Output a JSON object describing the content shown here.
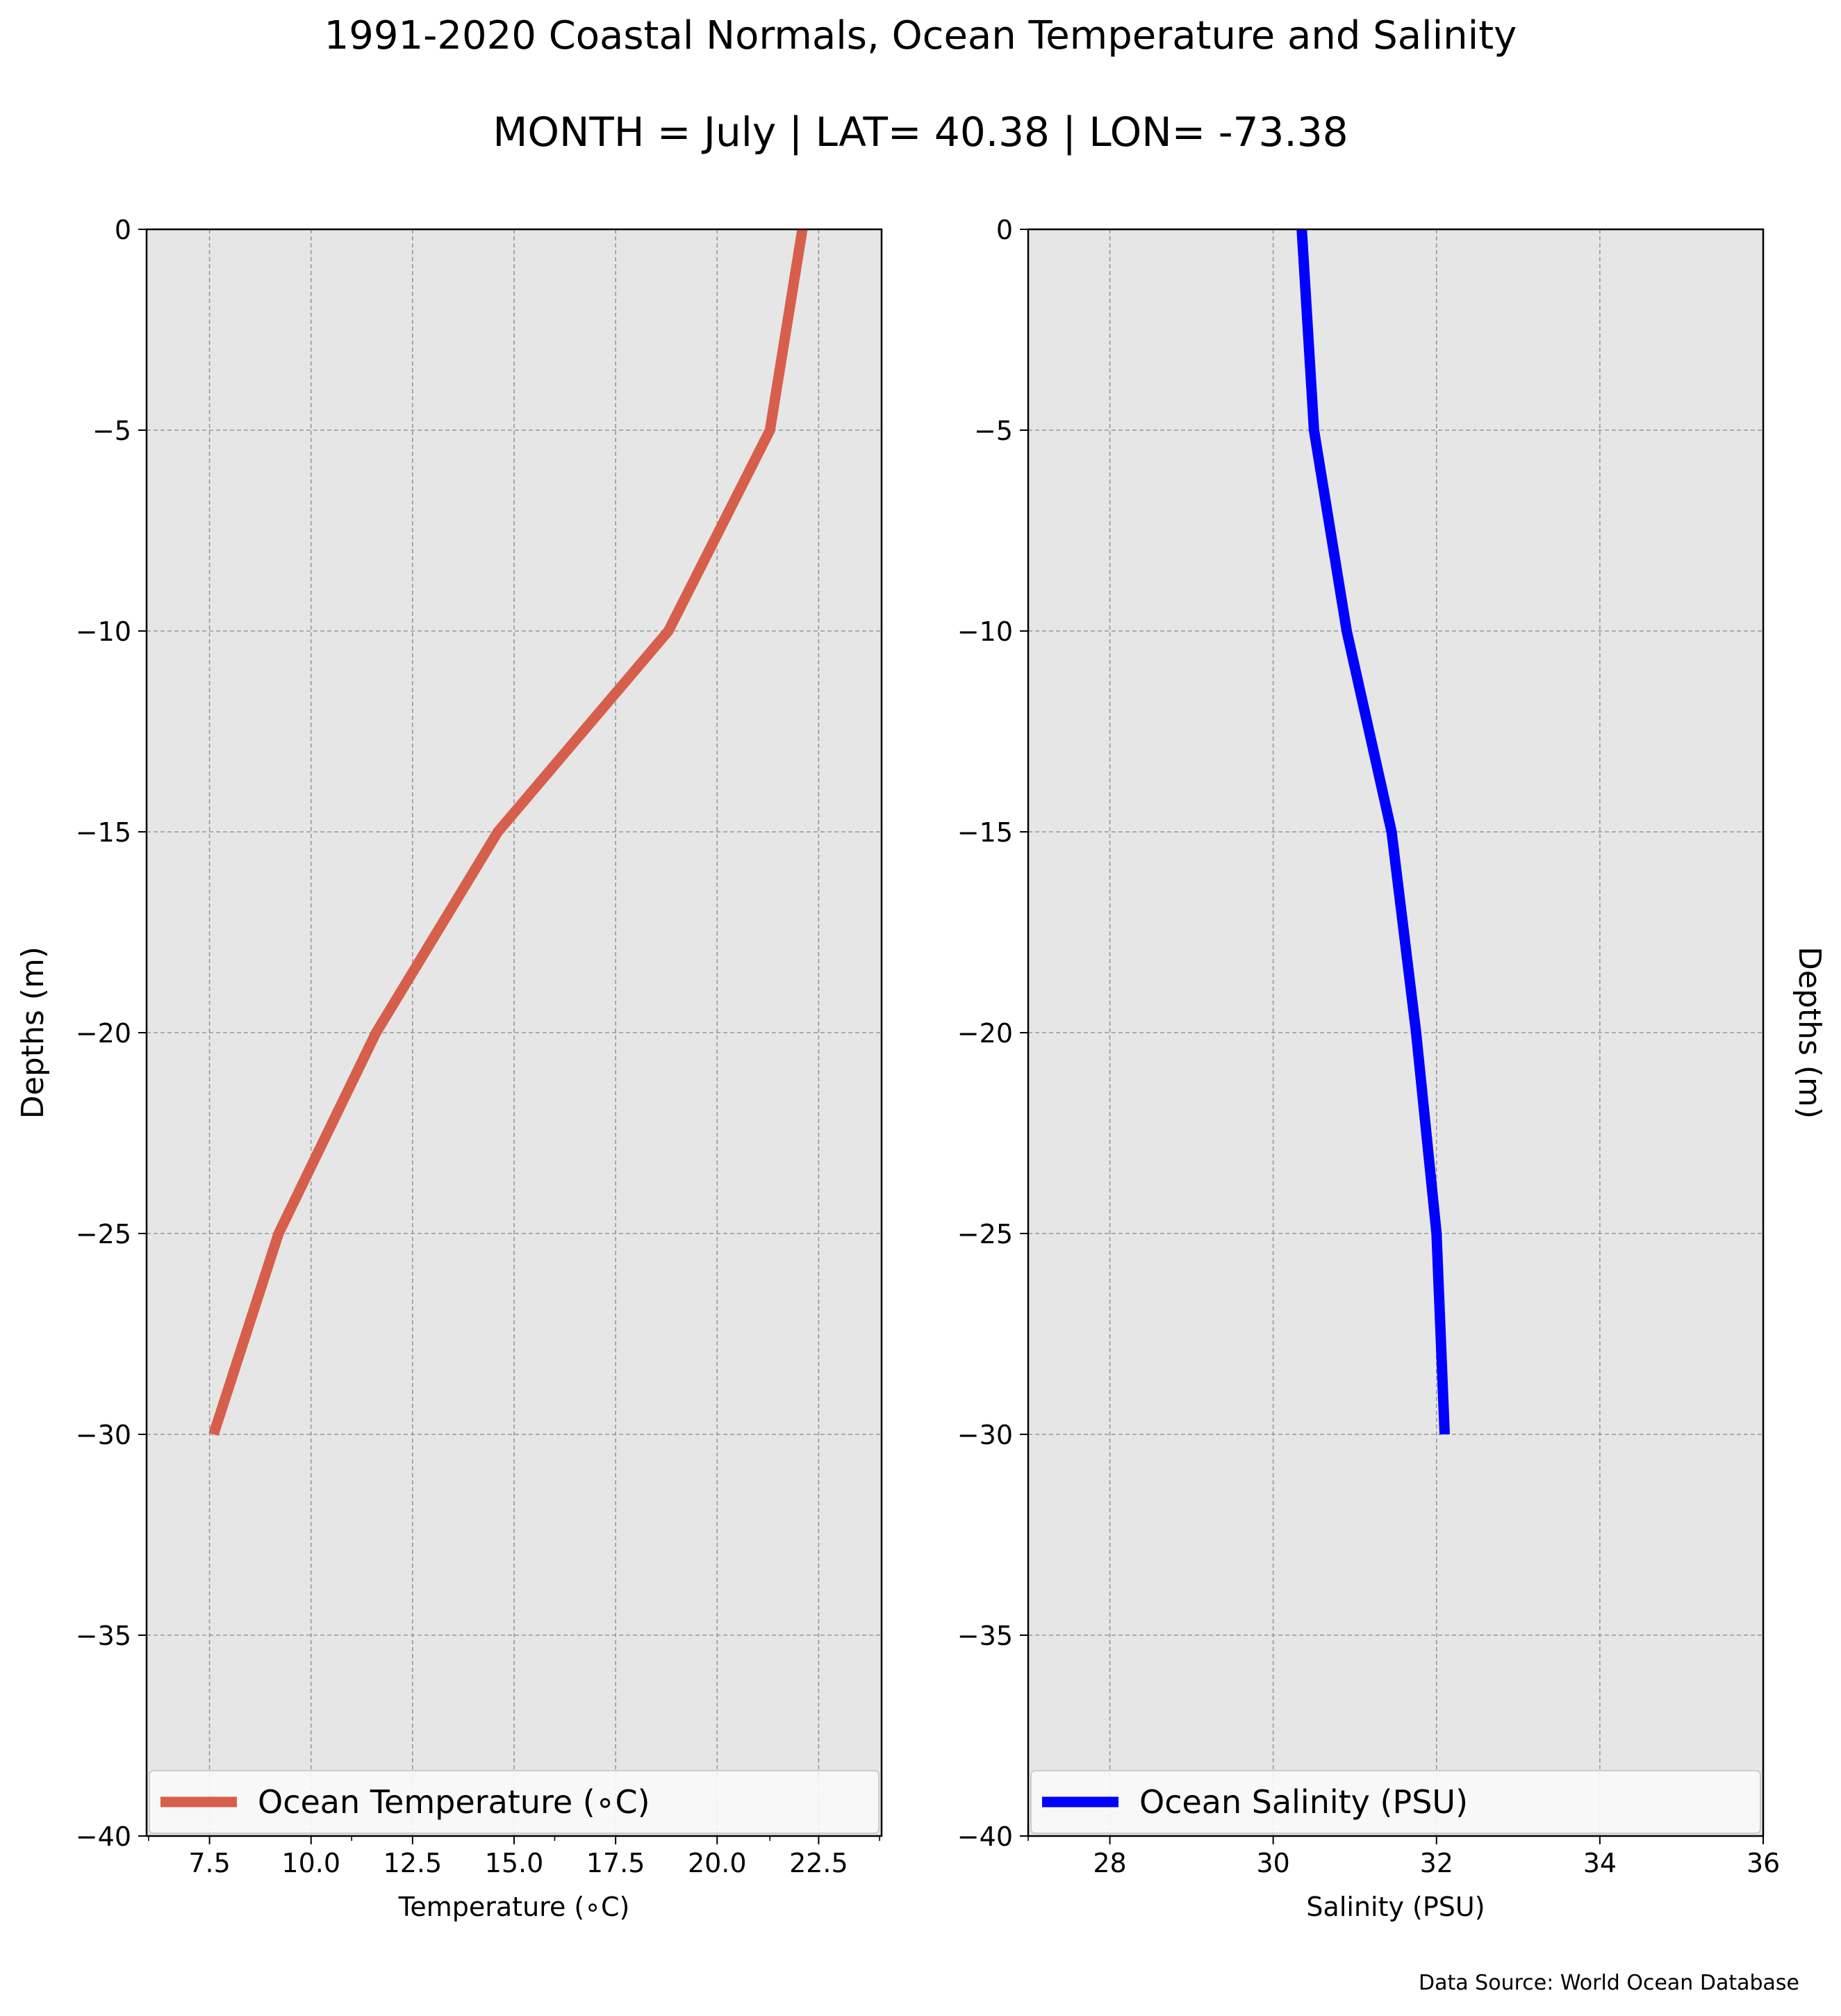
{
  "title": "1991-2020 Coastal Normals, Ocean Temperature and Salinity",
  "subtitle": "MONTH = July | LAT= 40.38 | LON= -73.38",
  "source_note": "Data Source: World Ocean Database",
  "colors": {
    "temperature": "#d65f4c",
    "salinity": "#0000ff",
    "axes_bg": "#e6e6e6",
    "grid": "#999999"
  },
  "chart_data": [
    {
      "type": "line",
      "xlabel": "Temperature ($^\\circ$C)",
      "xlabel_display": "Temperature (∘C)",
      "ylabel": "Depths (m)",
      "ylabel_position": "left",
      "xlim": [
        5.95,
        24.05
      ],
      "ylim": [
        -40,
        0
      ],
      "xticks": [
        7.5,
        10.0,
        12.5,
        15.0,
        17.5,
        20.0,
        22.5
      ],
      "xtick_labels": [
        "7.5",
        "10.0",
        "12.5",
        "15.0",
        "17.5",
        "20.0",
        "22.5"
      ],
      "xticks_minor": [
        6.0,
        11.0,
        16.0,
        21.3,
        24.0
      ],
      "yticks": [
        0,
        -5,
        -10,
        -15,
        -20,
        -25,
        -30,
        -35,
        -40
      ],
      "ytick_labels": [
        "0",
        "−5",
        "−10",
        "−15",
        "−20",
        "−25",
        "−30",
        "−35",
        "−40"
      ],
      "grid": true,
      "legend": {
        "position": "lower center",
        "label": "Ocean Temperature (∘C)"
      },
      "series": [
        {
          "name": "Ocean Temperature (∘C)",
          "x": [
            22.1,
            21.3,
            18.8,
            14.6,
            11.6,
            9.2,
            7.6
          ],
          "y": [
            0,
            -5,
            -10,
            -15,
            -20,
            -25,
            -30
          ]
        }
      ]
    },
    {
      "type": "line",
      "xlabel": "Salinity (PSU)",
      "ylabel": "Depths (m)",
      "ylabel_position": "right",
      "xlim": [
        27,
        36
      ],
      "ylim": [
        -40,
        0
      ],
      "xticks": [
        28,
        30,
        32,
        34,
        36
      ],
      "xtick_labels": [
        "28",
        "30",
        "32",
        "34",
        "36"
      ],
      "xticks_minor": [
        27
      ],
      "yticks": [
        0,
        -5,
        -10,
        -15,
        -20,
        -25,
        -30,
        -35,
        -40
      ],
      "ytick_labels": [
        "0",
        "−5",
        "−10",
        "−15",
        "−20",
        "−25",
        "−30",
        "−35",
        "−40"
      ],
      "grid": true,
      "legend": {
        "position": "lower center",
        "label": "Ocean Salinity (PSU)"
      },
      "series": [
        {
          "name": "Ocean Salinity (PSU)",
          "x": [
            30.35,
            30.5,
            30.9,
            31.45,
            31.75,
            32.0,
            32.1
          ],
          "y": [
            0,
            -5,
            -10,
            -15,
            -20,
            -25,
            -30
          ]
        }
      ]
    }
  ]
}
